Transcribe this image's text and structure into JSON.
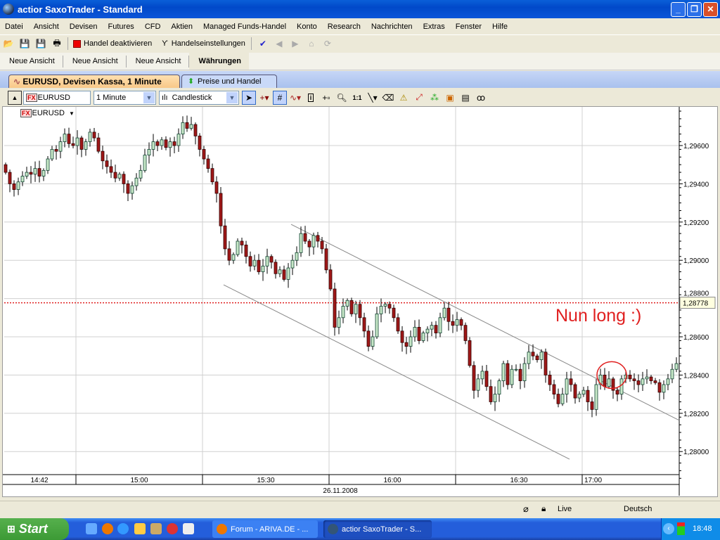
{
  "window": {
    "title": "actior SaxoTrader - Standard",
    "controls": [
      "minimize",
      "maximize",
      "close"
    ]
  },
  "menu": [
    "Datei",
    "Ansicht",
    "Devisen",
    "Futures",
    "CFD",
    "Aktien",
    "Managed Funds-Handel",
    "Konto",
    "Research",
    "Nachrichten",
    "Extras",
    "Fenster",
    "Hilfe"
  ],
  "toolbar": {
    "handel_deaktivieren": "Handel deaktivieren",
    "handelseinstellungen": "Handelseinstellungen"
  },
  "view_tabs": [
    {
      "label": "Neue Ansicht"
    },
    {
      "label": "Neue Ansicht"
    },
    {
      "label": "Neue Ansicht"
    },
    {
      "label": "Währungen",
      "active": true
    }
  ],
  "chart_tabs": [
    {
      "label": "EURUSD, Devisen Kassa, 1 Minute",
      "active": true
    },
    {
      "label": "Preise und Handel"
    }
  ],
  "chart_toolbar": {
    "instrument": "EURUSD",
    "instrument_badge": "FX",
    "interval": "1 Minute",
    "chart_type": "Candlestick",
    "zoom_label": "1:1"
  },
  "chart_legend": {
    "badge": "FX",
    "label": "EURUSD"
  },
  "annotation": {
    "text": "Nun long :)",
    "color": "#e02020"
  },
  "chart_data": {
    "type": "candlestick",
    "instrument": "EURUSD",
    "interval_minutes": 1,
    "first_candle_time": "14:43",
    "date": "26.11.2008",
    "ylim": [
      1.2786,
      1.298
    ],
    "y_ticks": [
      "1,29600",
      "1,29400",
      "1,29200",
      "1,29000",
      "1,28800",
      "1,28600",
      "1,28400",
      "1,28200",
      "1,28000"
    ],
    "y_tick_values": [
      1.296,
      1.294,
      1.292,
      1.29,
      1.288,
      1.286,
      1.284,
      1.282,
      1.28
    ],
    "x_ticks": [
      "14:42",
      "15:00",
      "15:30",
      "16:00",
      "16:30",
      "17:00"
    ],
    "first_open": 1.295,
    "closes": [
      1.2946,
      1.294,
      1.2937,
      1.2941,
      1.2944,
      1.2946,
      1.2945,
      1.2948,
      1.2944,
      1.2947,
      1.2953,
      1.2958,
      1.2957,
      1.2962,
      1.2966,
      1.2961,
      1.296,
      1.2964,
      1.2958,
      1.2962,
      1.2967,
      1.2964,
      1.2957,
      1.2952,
      1.2949,
      1.2946,
      1.2943,
      1.2945,
      1.294,
      1.2935,
      1.2939,
      1.2943,
      1.2947,
      1.2955,
      1.2958,
      1.2962,
      1.296,
      1.2963,
      1.2959,
      1.2962,
      1.296,
      1.2966,
      1.2972,
      1.2969,
      1.2971,
      1.2965,
      1.2958,
      1.2953,
      1.2948,
      1.2941,
      1.2935,
      1.2918,
      1.2906,
      1.29,
      1.2903,
      1.291,
      1.2908,
      1.2902,
      1.2897,
      1.29,
      1.2894,
      1.2897,
      1.2902,
      1.2899,
      1.2893,
      1.2895,
      1.289,
      1.2896,
      1.29,
      1.2904,
      1.2914,
      1.291,
      1.2907,
      1.2913,
      1.291,
      1.2906,
      1.2895,
      1.2885,
      1.2865,
      1.287,
      1.2876,
      1.2879,
      1.2872,
      1.2877,
      1.287,
      1.2863,
      1.2855,
      1.286,
      1.2872,
      1.2876,
      1.2877,
      1.2875,
      1.287,
      1.2863,
      1.2857,
      1.2855,
      1.286,
      1.2865,
      1.2858,
      1.2862,
      1.2864,
      1.2866,
      1.2862,
      1.287,
      1.2875,
      1.2868,
      1.2866,
      1.2869,
      1.2866,
      1.2858,
      1.2845,
      1.2832,
      1.2838,
      1.2842,
      1.2834,
      1.2826,
      1.283,
      1.2837,
      1.2846,
      1.2835,
      1.2843,
      1.2843,
      1.2837,
      1.2846,
      1.2852,
      1.285,
      1.2848,
      1.2852,
      1.284,
      1.2835,
      1.283,
      1.2825,
      1.283,
      1.2838,
      1.2835,
      1.2828,
      1.283,
      1.2832,
      1.2826,
      1.2822,
      1.2835,
      1.284,
      1.2834,
      1.2838,
      1.2832,
      1.283,
      1.2838,
      1.284,
      1.2838,
      1.2837,
      1.2835,
      1.2838,
      1.2839,
      1.2837,
      1.2836,
      1.2831,
      1.2835,
      1.2838,
      1.2843,
      1.2846
    ],
    "current_price_line": {
      "value": 1.28778,
      "label": "1,28778",
      "color": "#e02020"
    },
    "trend_lines": [
      {
        "from": [
          "15:51",
          1.29188
        ],
        "to": [
          "17:23",
          1.28163
        ]
      },
      {
        "from": [
          "15:35",
          1.28872
        ],
        "to": [
          "16:57",
          1.2796
        ]
      }
    ],
    "highlight_circle": {
      "time": "17:07",
      "price": 1.284
    },
    "colors": {
      "up": "#c8e8c8",
      "down": "#a01818",
      "grid": "#d0d0d0"
    },
    "grid": true
  },
  "status": {
    "connection": "Live",
    "language": "Deutsch"
  },
  "taskbar": {
    "start": "Start",
    "tasks": [
      {
        "label": "Forum - ARIVA.DE - ..."
      },
      {
        "label": "actior SaxoTrader - S..."
      }
    ],
    "clock": "18:48"
  }
}
